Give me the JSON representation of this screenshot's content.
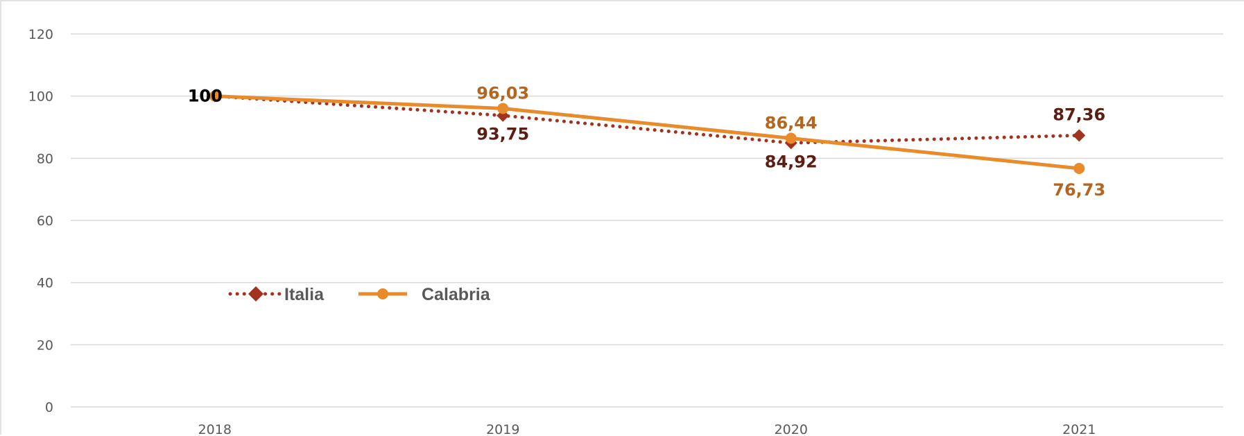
{
  "chart_data": {
    "type": "line",
    "title": "",
    "xlabel": "",
    "ylabel": "",
    "categories": [
      "2018",
      "2019",
      "2020",
      "2021"
    ],
    "ylim": [
      0,
      120
    ],
    "yticks": [
      0,
      20,
      40,
      60,
      80,
      100,
      120
    ],
    "grid": true,
    "legend_position": "center-left",
    "series": [
      {
        "name": "Italia",
        "values": [
          100,
          93.75,
          84.92,
          87.36
        ],
        "labels": [
          "100",
          "93,75",
          "84,92",
          "87,36"
        ],
        "color": "#a0321e",
        "label_color": "#5a1f12",
        "line_style": "dotted",
        "marker": "diamond"
      },
      {
        "name": "Calabria",
        "values": [
          100,
          96.03,
          86.44,
          76.73
        ],
        "labels": [
          "100",
          "96,03",
          "86,44",
          "76,73"
        ],
        "color": "#e98b2a",
        "label_color": "#b4661f",
        "line_style": "solid",
        "marker": "circle"
      }
    ]
  }
}
